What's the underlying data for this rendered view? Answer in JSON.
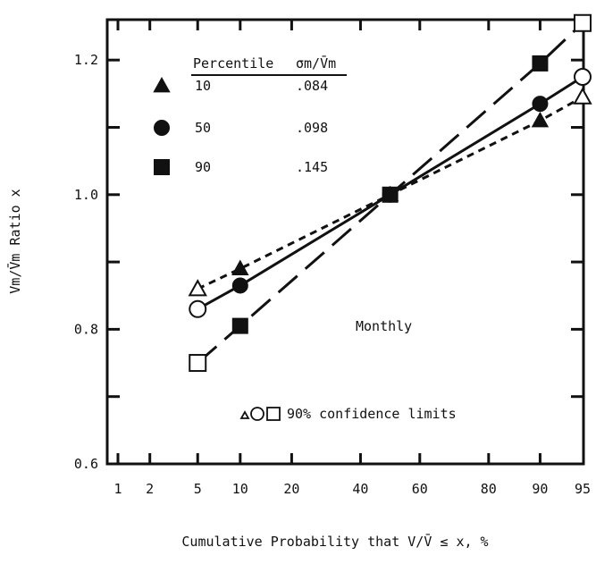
{
  "chart_data": {
    "type": "line",
    "xlabel": "Cumulative Probability that V/V̄ ≤ x, %",
    "ylabel": "Vm/V̄m Ratio x",
    "x_scale": "probability",
    "xticks": [
      1,
      2,
      5,
      10,
      20,
      40,
      60,
      80,
      90,
      95
    ],
    "ylim": [
      0.6,
      1.26
    ],
    "yticks": [
      0.6,
      0.8,
      1.0,
      1.2
    ],
    "yticks_minor": [
      0.7,
      0.9,
      1.1
    ],
    "grid": false,
    "legend": {
      "position": "top-left",
      "header_percentile": "Percentile",
      "header_sigma": "σm/V̄m",
      "entries": [
        {
          "percentile": "10",
          "sigma": ".084",
          "marker": "triangle"
        },
        {
          "percentile": "50",
          "sigma": ".098",
          "marker": "circle"
        },
        {
          "percentile": "90",
          "sigma": ".145",
          "marker": "square"
        }
      ]
    },
    "annotations": {
      "period": "Monthly",
      "confidence": "90% confidence limits"
    },
    "series": [
      {
        "percentile": "10",
        "marker": "triangle",
        "line_style": "short-dash",
        "x": [
          5,
          10,
          50,
          90,
          95
        ],
        "y": [
          0.86,
          0.89,
          1.0,
          1.11,
          1.145
        ],
        "filled": [
          false,
          true,
          true,
          true,
          false
        ]
      },
      {
        "percentile": "50",
        "marker": "circle",
        "line_style": "solid",
        "x": [
          5,
          10,
          50,
          90,
          95
        ],
        "y": [
          0.83,
          0.865,
          1.0,
          1.135,
          1.175
        ],
        "filled": [
          false,
          true,
          true,
          true,
          false
        ]
      },
      {
        "percentile": "90",
        "marker": "square",
        "line_style": "long-dash",
        "x": [
          5,
          10,
          50,
          90,
          95
        ],
        "y": [
          0.75,
          0.805,
          1.0,
          1.195,
          1.255
        ],
        "filled": [
          false,
          true,
          true,
          true,
          false
        ]
      }
    ]
  }
}
